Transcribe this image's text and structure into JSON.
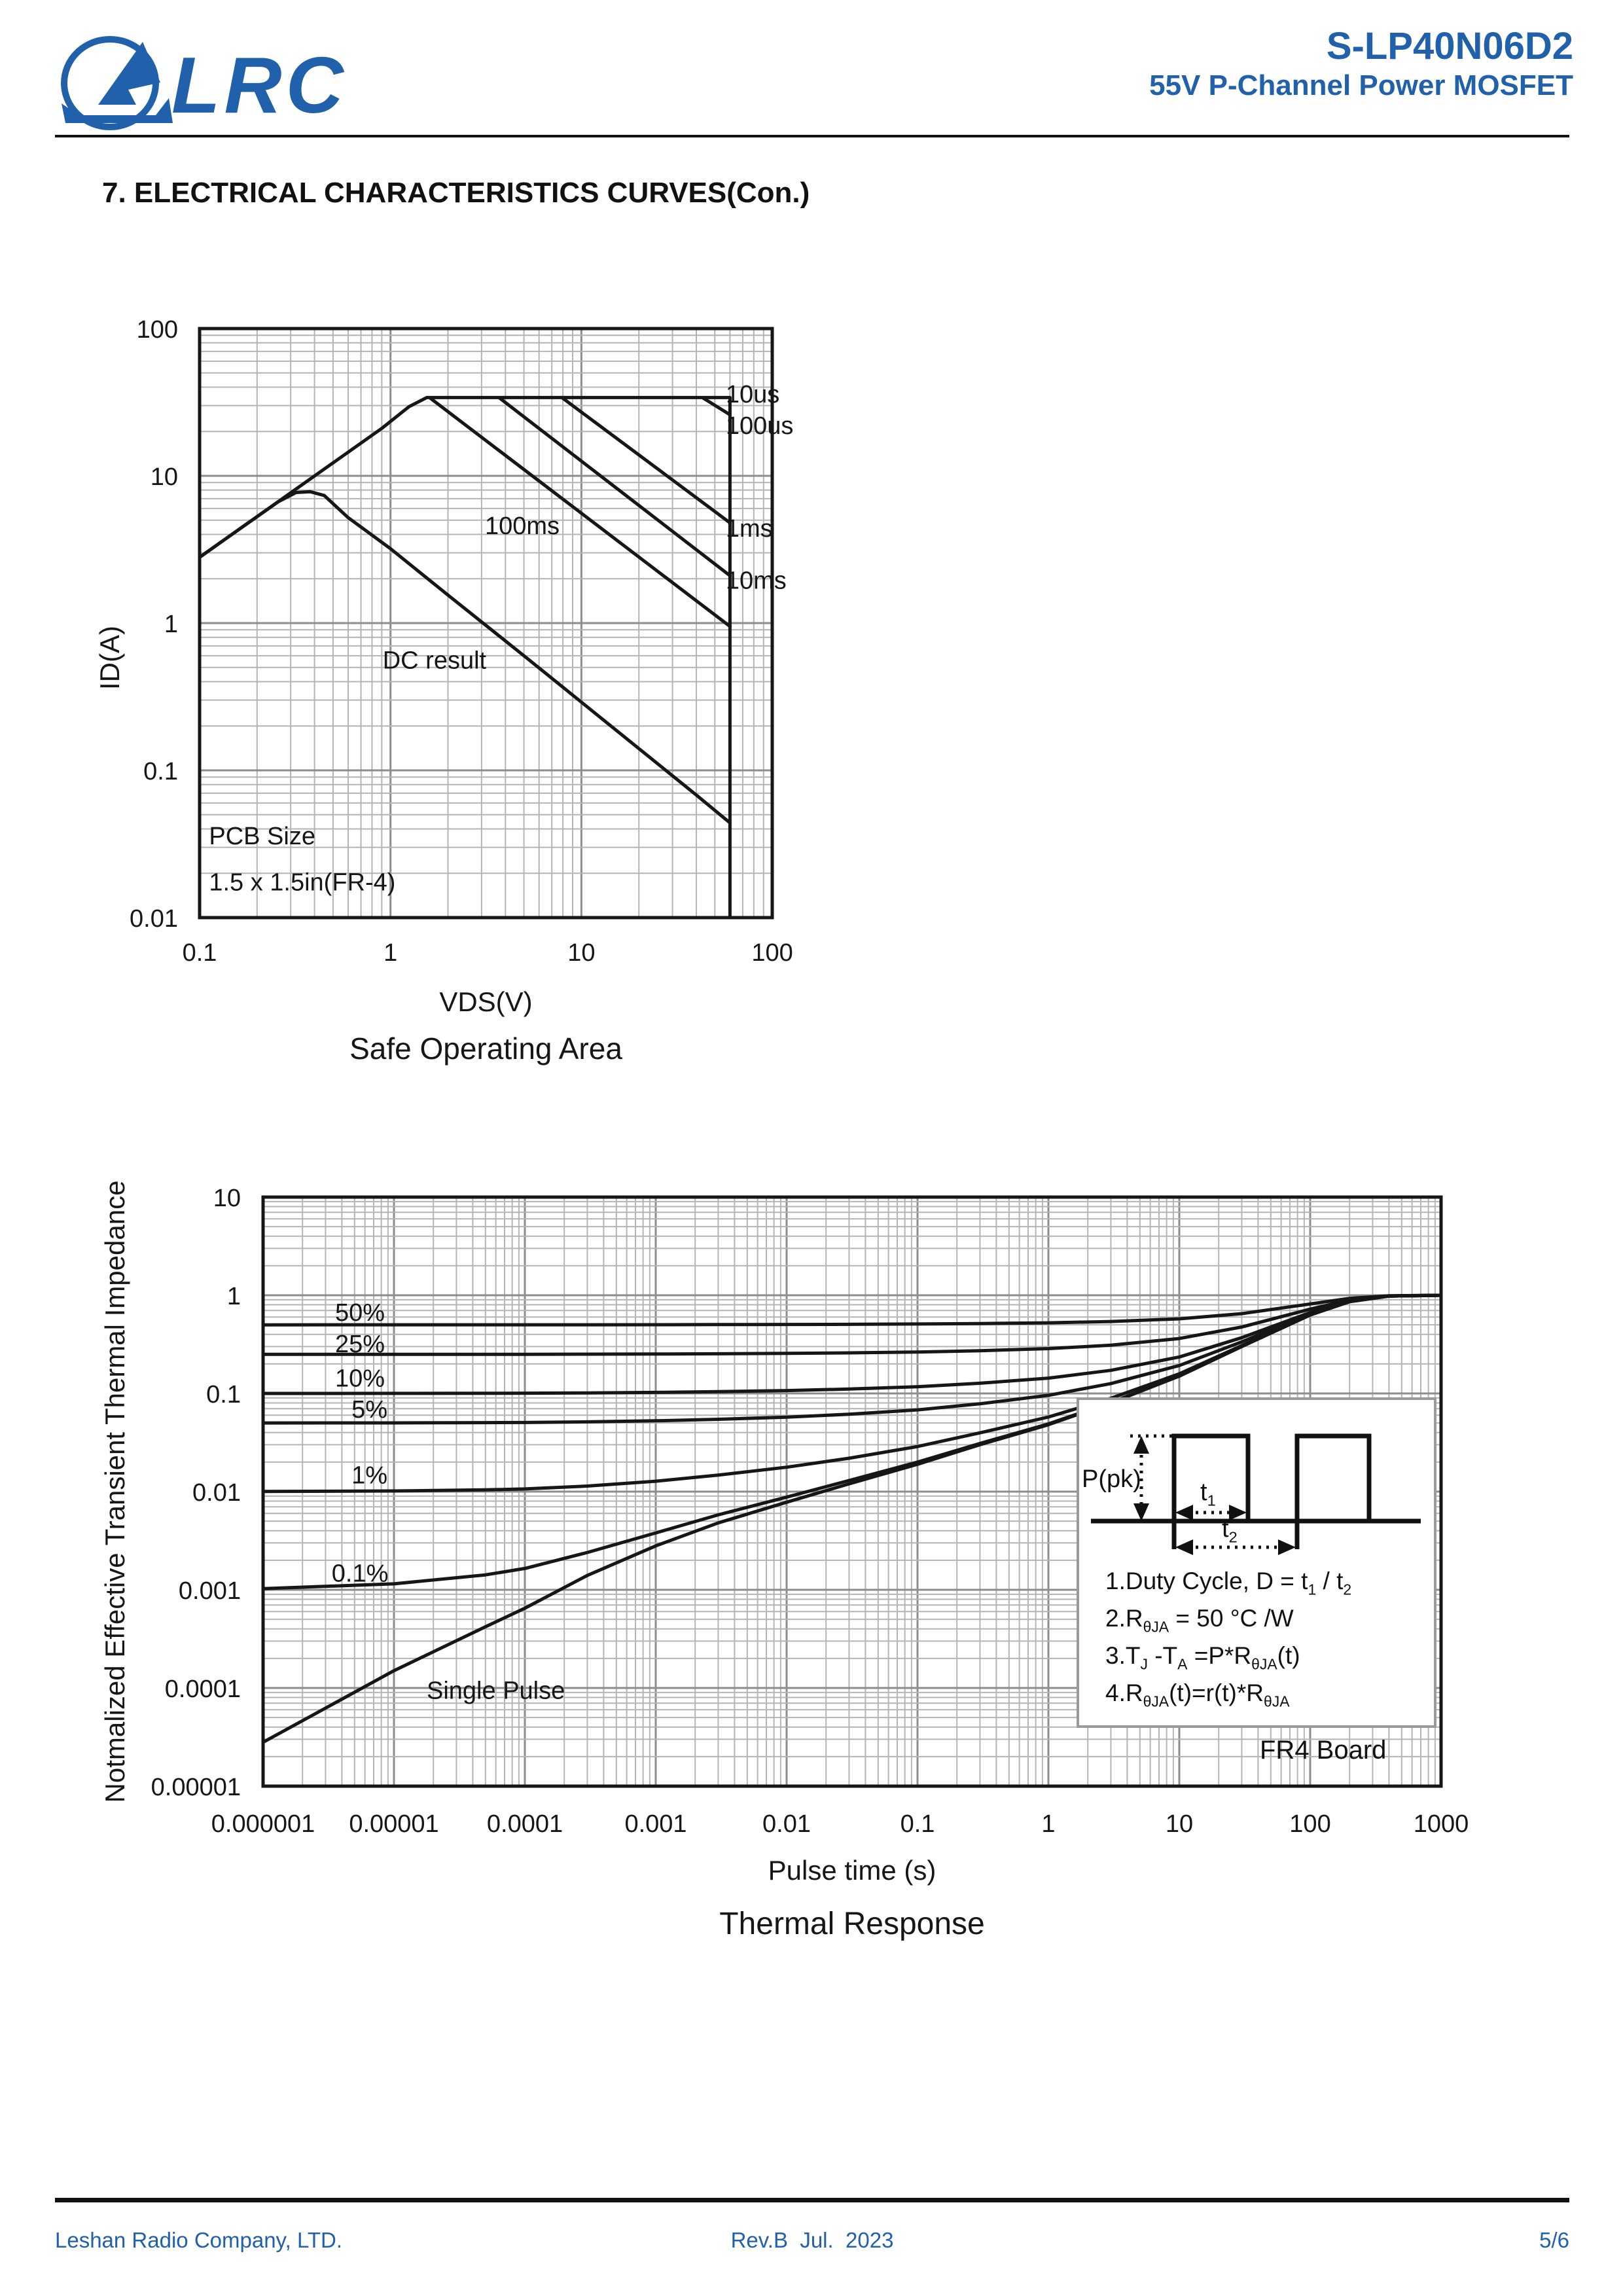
{
  "header": {
    "brand": "LRC",
    "part_number": "S-LP40N06D2",
    "subtitle": "55V P-Channel Power MOSFET"
  },
  "section_title": "7. ELECTRICAL CHARACTERISTICS CURVES(Con.)",
  "colors": {
    "accent_blue": "#2161ab",
    "ink": "#161616",
    "grid_minor": "#b4b4b4",
    "grid_major": "#8d8d8d",
    "inset_border": "#9a9a9a"
  },
  "chart_data": [
    {
      "type": "line",
      "title": "Safe Operating Area",
      "xlabel": "VDS(V)",
      "ylabel": "ID(A)",
      "x_scale": "log",
      "y_scale": "log",
      "xlim": [
        0.1,
        100
      ],
      "ylim": [
        0.01,
        100
      ],
      "x_ticks": [
        "0.1",
        "1",
        "10",
        "100"
      ],
      "y_ticks": [
        "100",
        "10",
        "1",
        "0.1",
        "0.01"
      ],
      "grid": true,
      "series": [
        {
          "name": "10us",
          "points": [
            [
              0.1,
              2.8
            ],
            [
              0.9,
              21
            ],
            [
              1.25,
              29.5
            ],
            [
              1.55,
              34
            ],
            [
              60,
              34
            ],
            [
              60,
              0.01
            ]
          ]
        },
        {
          "name": "100us",
          "points": [
            [
              43,
              34
            ],
            [
              60,
              26
            ]
          ]
        },
        {
          "name": "1ms",
          "points": [
            [
              7.9,
              34
            ],
            [
              60,
              4.8
            ]
          ]
        },
        {
          "name": "10ms",
          "points": [
            [
              3.7,
              34
            ],
            [
              60,
              2.1
            ]
          ]
        },
        {
          "name": "100ms",
          "points": [
            [
              1.6,
              34
            ],
            [
              60,
              0.95
            ]
          ]
        },
        {
          "name": "DC result",
          "points": [
            [
              0.1,
              2.8
            ],
            [
              0.18,
              4.8
            ],
            [
              0.26,
              6.7
            ],
            [
              0.32,
              7.7
            ],
            [
              0.38,
              7.8
            ],
            [
              0.45,
              7.35
            ],
            [
              0.6,
              5.2
            ],
            [
              1,
              3.2
            ],
            [
              2,
              1.55
            ],
            [
              5,
              0.6
            ],
            [
              15,
              0.19
            ],
            [
              40,
              0.068
            ],
            [
              60,
              0.044
            ]
          ]
        }
      ],
      "labels": [
        {
          "text": "10us",
          "x": 57,
          "y": 36,
          "anchor": "start"
        },
        {
          "text": "100us",
          "x": 57,
          "y": 22,
          "anchor": "start"
        },
        {
          "text": "1ms",
          "x": 57,
          "y": 4.4,
          "anchor": "start"
        },
        {
          "text": "10ms",
          "x": 57,
          "y": 1.95,
          "anchor": "start"
        },
        {
          "text": "100ms",
          "x": 4.9,
          "y": 4.6,
          "anchor": "middle"
        },
        {
          "text": "DC result",
          "x": 1.7,
          "y": 0.56,
          "anchor": "middle"
        }
      ],
      "annotations": [
        {
          "text": "PCB Size",
          "x": 0.112,
          "y": 0.036
        },
        {
          "text": "1.5 x 1.5in(FR-4)",
          "x": 0.112,
          "y": 0.0175
        }
      ]
    },
    {
      "type": "line",
      "title": "Thermal Response",
      "xlabel": "Pulse time (s)",
      "ylabel": "Notmalized Effective Transient Thermal Impedance",
      "x_scale": "log",
      "y_scale": "log",
      "xlim": [
        1e-06,
        1000
      ],
      "ylim": [
        1e-05,
        10
      ],
      "x_ticks": [
        "0.000001",
        "0.00001",
        "0.0001",
        "0.001",
        "0.01",
        "0.1",
        "1",
        "10",
        "100",
        "1000"
      ],
      "y_ticks": [
        "10",
        "1",
        "0.1",
        "0.01",
        "0.001",
        "0.0001",
        "0.00001"
      ],
      "grid": true,
      "duty_cycles": [
        0.5,
        0.25,
        0.1,
        0.05,
        0.01,
        0.001
      ],
      "duty_cycle_names": [
        "50%",
        "25%",
        "10%",
        "5%",
        "1%",
        "0.1%"
      ],
      "single_pulse_name": "Single Pulse",
      "single_pulse": [
        [
          1e-06,
          2.8e-05
        ],
        [
          1e-05,
          0.00015
        ],
        [
          5e-05,
          0.00042
        ],
        [
          0.0001,
          0.00065
        ],
        [
          0.0003,
          0.0014
        ],
        [
          0.001,
          0.0028
        ],
        [
          0.003,
          0.0048
        ],
        [
          0.01,
          0.0078
        ],
        [
          0.03,
          0.012
        ],
        [
          0.1,
          0.019
        ],
        [
          0.3,
          0.03
        ],
        [
          1,
          0.048
        ],
        [
          3,
          0.08
        ],
        [
          10,
          0.15
        ],
        [
          30,
          0.3
        ],
        [
          100,
          0.63
        ],
        [
          200,
          0.86
        ],
        [
          400,
          0.98
        ],
        [
          1000,
          1.0
        ]
      ],
      "labels": [
        {
          "text": "50%",
          "x": 5.5e-06,
          "y": 0.67,
          "anchor": "middle"
        },
        {
          "text": "25%",
          "x": 5.5e-06,
          "y": 0.32,
          "anchor": "middle"
        },
        {
          "text": "10%",
          "x": 5.5e-06,
          "y": 0.143,
          "anchor": "middle"
        },
        {
          "text": "5%",
          "x": 6.5e-06,
          "y": 0.069,
          "anchor": "middle"
        },
        {
          "text": "1%",
          "x": 6.5e-06,
          "y": 0.0148,
          "anchor": "middle"
        },
        {
          "text": "0.1%",
          "x": 5.5e-06,
          "y": 0.00148,
          "anchor": "middle"
        },
        {
          "text": "Single Pulse",
          "x": 6e-05,
          "y": 9.5e-05,
          "anchor": "middle"
        }
      ]
    }
  ],
  "inset": {
    "p_pk_label": "P(pk)",
    "t1_label": [
      {
        "t": "t"
      },
      {
        "s": "1"
      }
    ],
    "t2_label": [
      {
        "t": "t"
      },
      {
        "s": "2"
      }
    ],
    "notes": [
      [
        {
          "t": "1.Duty Cycle, D = t"
        },
        {
          "s": "1"
        },
        {
          "t": " / t"
        },
        {
          "s": "2"
        }
      ],
      [
        {
          "t": "2.R"
        },
        {
          "s": "θJA"
        },
        {
          "t": " = 50 °C /W"
        }
      ],
      [
        {
          "t": "3.T"
        },
        {
          "s": "J"
        },
        {
          "t": " -T"
        },
        {
          "s": "A"
        },
        {
          "t": " =P*R"
        },
        {
          "s": "θJA"
        },
        {
          "t": "(t)"
        }
      ],
      [
        {
          "t": "4.R"
        },
        {
          "s": "θJA"
        },
        {
          "t": "(t)=r(t)*R"
        },
        {
          "s": "θJA"
        }
      ]
    ],
    "board_label": "FR4 Board"
  },
  "footer": {
    "company": "Leshan Radio Company, LTD.",
    "revision": "Rev.B  Jul.  2023",
    "page": "5/6"
  }
}
